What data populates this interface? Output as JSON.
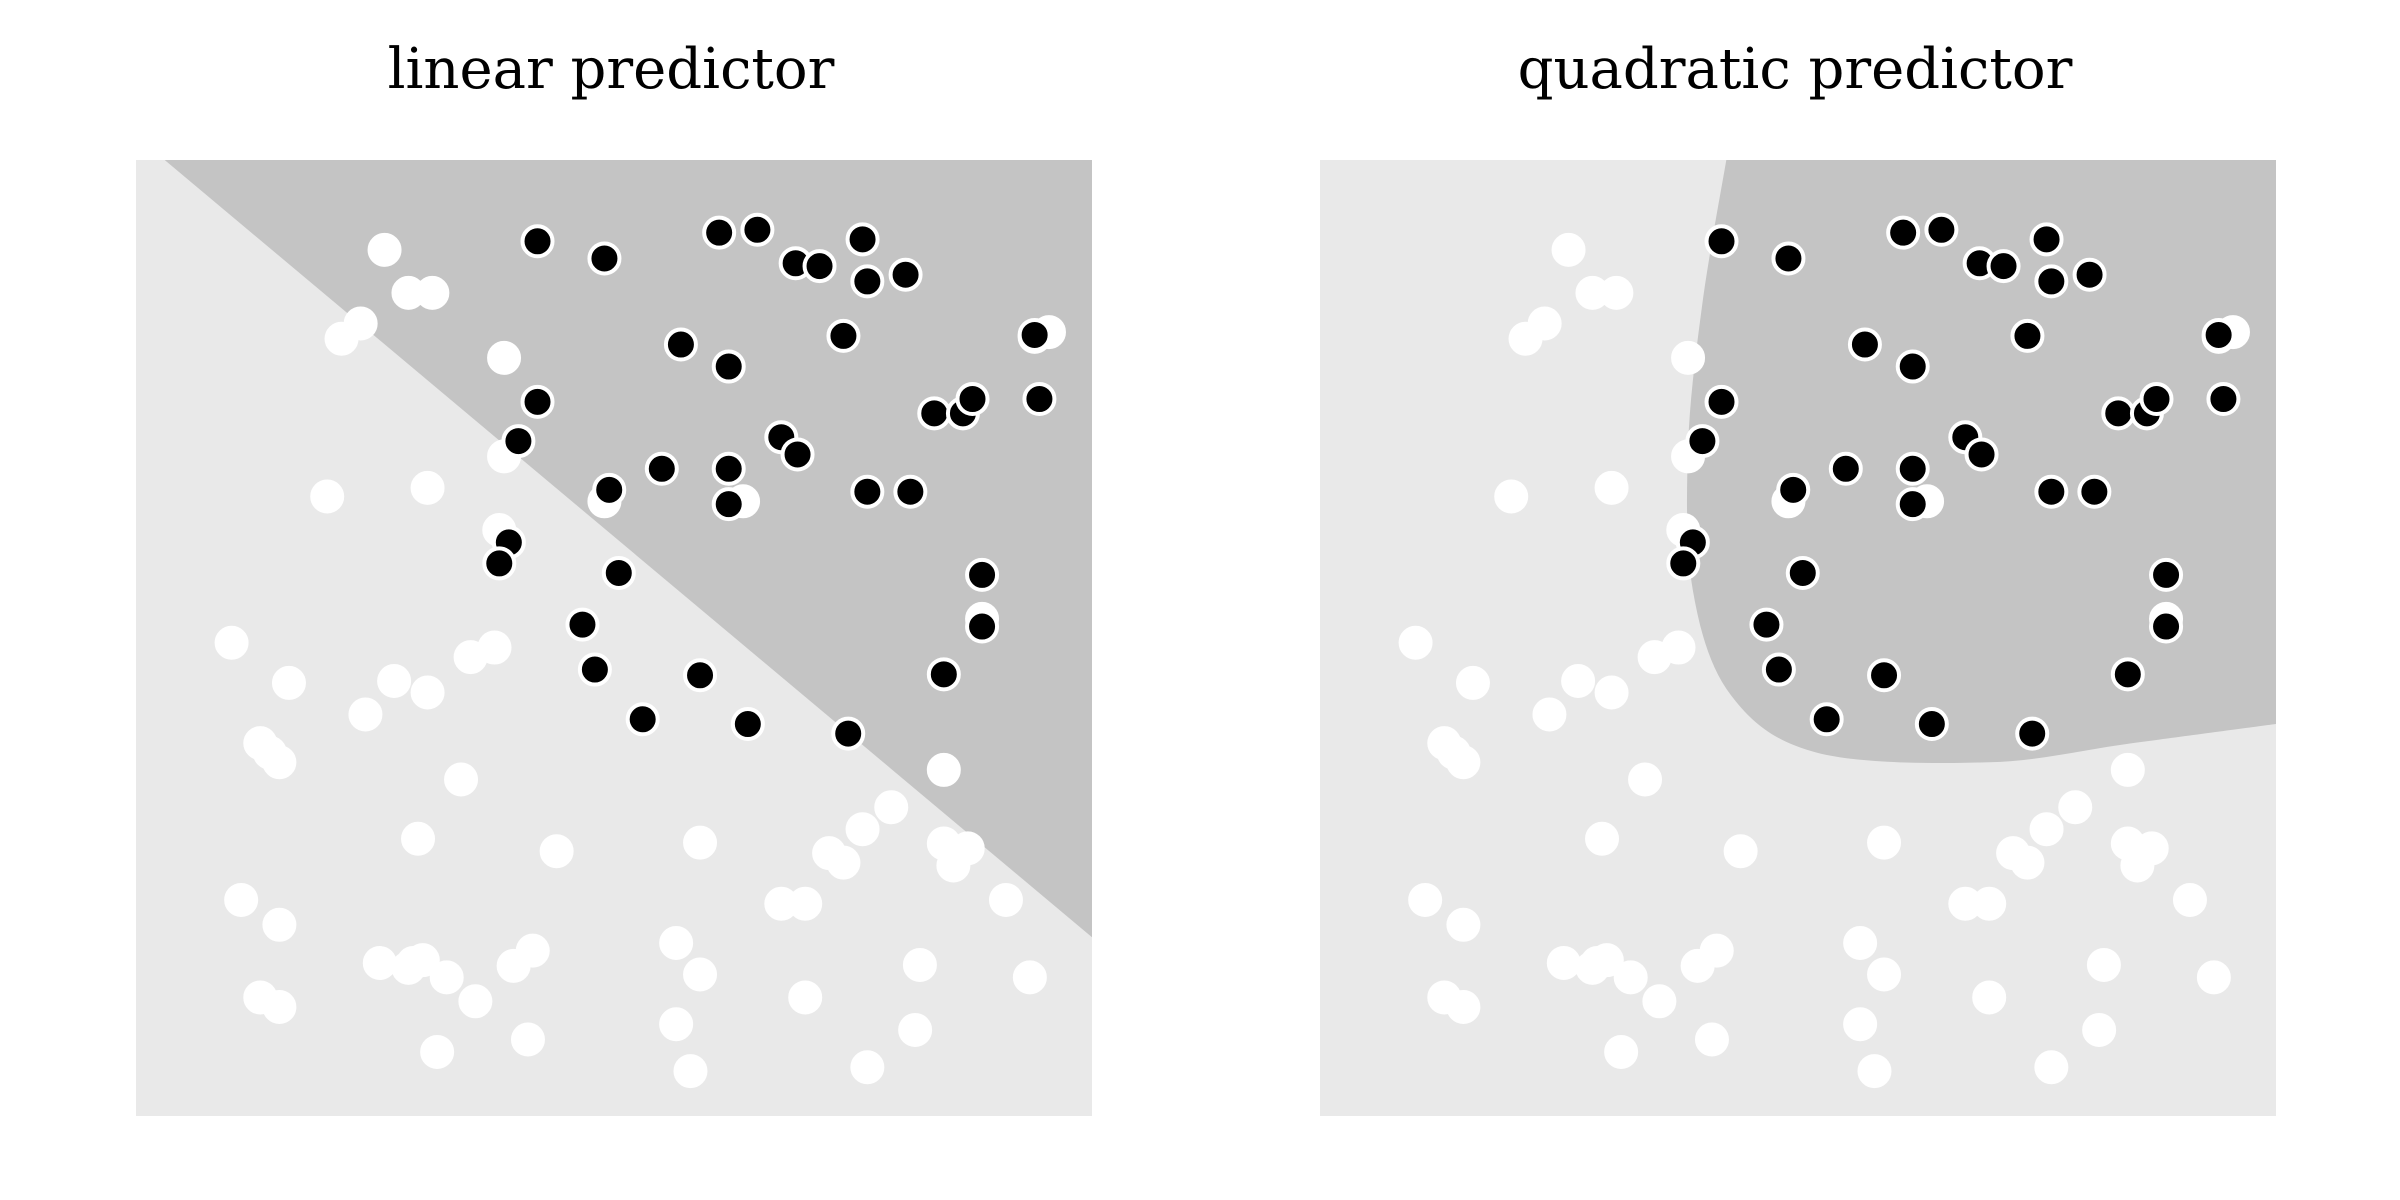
{
  "colors": {
    "region_negative": "#e9e9e9",
    "region_positive": "#c4c4c4",
    "point_positive": "#000000",
    "point_negative": "#ffffff",
    "point_outline": "#000000"
  },
  "chart_data": [
    {
      "type": "scatter",
      "title": "linear predictor",
      "xlabel": "",
      "ylabel": "",
      "xlim": [
        0,
        1
      ],
      "ylim": [
        0,
        1
      ],
      "grid": false,
      "decision_boundary": {
        "kind": "linear",
        "points": [
          [
            0.03,
            1.0
          ],
          [
            1.0,
            0.187
          ]
        ],
        "positive_side": "upper-right"
      }
    },
    {
      "type": "scatter",
      "title": "quadratic predictor",
      "xlabel": "",
      "ylabel": "",
      "xlim": [
        0,
        1
      ],
      "ylim": [
        0,
        1
      ],
      "grid": false,
      "decision_boundary": {
        "kind": "quadratic",
        "points": [
          [
            0.425,
            1.0
          ],
          [
            0.4,
            0.85
          ],
          [
            0.385,
            0.7
          ],
          [
            0.39,
            0.55
          ],
          [
            0.43,
            0.44
          ],
          [
            0.52,
            0.38
          ],
          [
            0.7,
            0.37
          ],
          [
            0.85,
            0.39
          ],
          [
            1.0,
            0.41
          ]
        ],
        "positive_side": "upper-right"
      }
    }
  ],
  "points": {
    "positive": [
      [
        0.42,
        0.915
      ],
      [
        0.49,
        0.897
      ],
      [
        0.61,
        0.924
      ],
      [
        0.65,
        0.927
      ],
      [
        0.69,
        0.892
      ],
      [
        0.715,
        0.889
      ],
      [
        0.76,
        0.917
      ],
      [
        0.765,
        0.873
      ],
      [
        0.805,
        0.88
      ],
      [
        0.57,
        0.807
      ],
      [
        0.74,
        0.816
      ],
      [
        0.94,
        0.815
      ],
      [
        0.62,
        0.784
      ],
      [
        0.42,
        0.747
      ],
      [
        0.835,
        0.735
      ],
      [
        0.865,
        0.735
      ],
      [
        0.875,
        0.75
      ],
      [
        0.945,
        0.75
      ],
      [
        0.675,
        0.71
      ],
      [
        0.692,
        0.692
      ],
      [
        0.4,
        0.706
      ],
      [
        0.55,
        0.677
      ],
      [
        0.62,
        0.677
      ],
      [
        0.495,
        0.655
      ],
      [
        0.765,
        0.653
      ],
      [
        0.81,
        0.653
      ],
      [
        0.62,
        0.64
      ],
      [
        0.39,
        0.6
      ],
      [
        0.38,
        0.578
      ],
      [
        0.505,
        0.568
      ],
      [
        0.885,
        0.566
      ],
      [
        0.467,
        0.514
      ],
      [
        0.885,
        0.512
      ],
      [
        0.48,
        0.467
      ],
      [
        0.59,
        0.461
      ],
      [
        0.845,
        0.462
      ],
      [
        0.53,
        0.415
      ],
      [
        0.64,
        0.41
      ],
      [
        0.745,
        0.4
      ],
      [
        0.94,
        0.817
      ]
    ],
    "negative": [
      [
        0.26,
        0.906
      ],
      [
        0.285,
        0.861
      ],
      [
        0.31,
        0.861
      ],
      [
        0.235,
        0.829
      ],
      [
        0.215,
        0.813
      ],
      [
        0.955,
        0.82
      ],
      [
        0.385,
        0.793
      ],
      [
        0.385,
        0.69
      ],
      [
        0.2,
        0.648
      ],
      [
        0.305,
        0.657
      ],
      [
        0.38,
        0.613
      ],
      [
        0.49,
        0.643
      ],
      [
        0.635,
        0.643
      ],
      [
        0.1,
        0.495
      ],
      [
        0.16,
        0.453
      ],
      [
        0.27,
        0.455
      ],
      [
        0.305,
        0.443
      ],
      [
        0.35,
        0.48
      ],
      [
        0.375,
        0.49
      ],
      [
        0.885,
        0.52
      ],
      [
        0.24,
        0.42
      ],
      [
        0.13,
        0.39
      ],
      [
        0.14,
        0.38
      ],
      [
        0.15,
        0.37
      ],
      [
        0.34,
        0.352
      ],
      [
        0.845,
        0.362
      ],
      [
        0.79,
        0.323
      ],
      [
        0.76,
        0.3
      ],
      [
        0.295,
        0.29
      ],
      [
        0.44,
        0.277
      ],
      [
        0.59,
        0.286
      ],
      [
        0.725,
        0.275
      ],
      [
        0.74,
        0.265
      ],
      [
        0.845,
        0.285
      ],
      [
        0.87,
        0.28
      ],
      [
        0.855,
        0.262
      ],
      [
        0.91,
        0.226
      ],
      [
        0.11,
        0.226
      ],
      [
        0.15,
        0.2
      ],
      [
        0.675,
        0.222
      ],
      [
        0.7,
        0.222
      ],
      [
        0.565,
        0.181
      ],
      [
        0.29,
        0.16
      ],
      [
        0.3,
        0.163
      ],
      [
        0.325,
        0.145
      ],
      [
        0.395,
        0.157
      ],
      [
        0.415,
        0.173
      ],
      [
        0.59,
        0.148
      ],
      [
        0.13,
        0.124
      ],
      [
        0.15,
        0.114
      ],
      [
        0.285,
        0.155
      ],
      [
        0.355,
        0.12
      ],
      [
        0.82,
        0.158
      ],
      [
        0.935,
        0.145
      ],
      [
        0.7,
        0.124
      ],
      [
        0.565,
        0.096
      ],
      [
        0.815,
        0.09
      ],
      [
        0.315,
        0.067
      ],
      [
        0.41,
        0.08
      ],
      [
        0.58,
        0.047
      ],
      [
        0.765,
        0.051
      ],
      [
        0.255,
        0.16
      ]
    ]
  }
}
